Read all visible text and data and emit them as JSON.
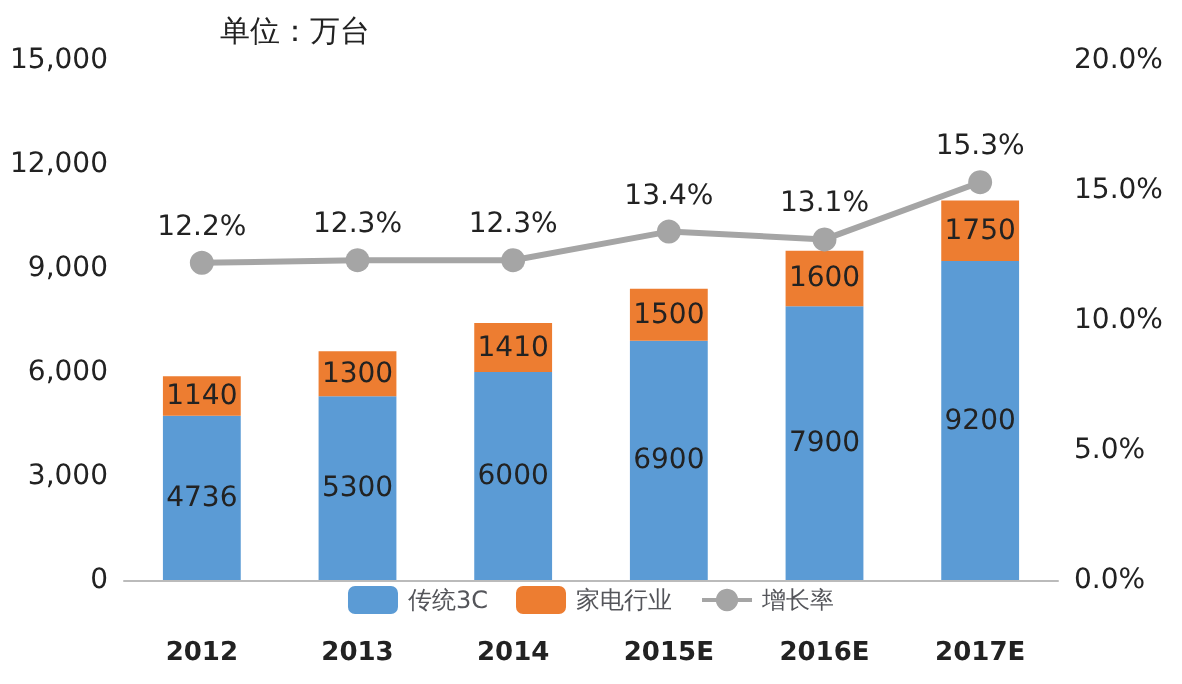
{
  "chart_data": {
    "type": "bar",
    "stacked": true,
    "categories": [
      "2012",
      "2013",
      "2014",
      "2015E",
      "2016E",
      "2017E"
    ],
    "series": [
      {
        "name": "传统3C",
        "color": "#5b9bd5",
        "values": [
          4736,
          5300,
          6000,
          6900,
          7900,
          9200
        ]
      },
      {
        "name": "家电行业",
        "color": "#ed7d31",
        "values": [
          1140,
          1300,
          1410,
          1500,
          1600,
          1750
        ]
      },
      {
        "name": "增长率",
        "type": "line",
        "axis": "y2",
        "color": "#a5a5a5",
        "values": [
          12.2,
          12.3,
          12.3,
          13.4,
          13.1,
          15.3
        ],
        "value_labels": [
          "12.2%",
          "12.3%",
          "12.3%",
          "13.4%",
          "13.1%",
          "15.3%"
        ]
      }
    ],
    "ylim": [
      0,
      15000
    ],
    "yticks": [
      0,
      {
        "value": 3000,
        "label": "3,000"
      },
      {
        "value": 6000,
        "label": "6,000"
      },
      {
        "value": 9000,
        "label": "9,000"
      },
      {
        "value": 12000,
        "label": "12,000"
      },
      {
        "value": 15000,
        "label": "15,000"
      }
    ],
    "y2lim": [
      0,
      20
    ],
    "y2ticks": [
      {
        "value": 0,
        "label": "0.0%"
      },
      {
        "value": 5,
        "label": "5.0%"
      },
      {
        "value": 10,
        "label": "10.0%"
      },
      {
        "value": 15,
        "label": "15.0%"
      },
      {
        "value": 20,
        "label": "20.0%"
      }
    ],
    "annotations": [
      "单位：万台"
    ],
    "data_labels": true,
    "legend": "bottom",
    "marker": "circle"
  }
}
